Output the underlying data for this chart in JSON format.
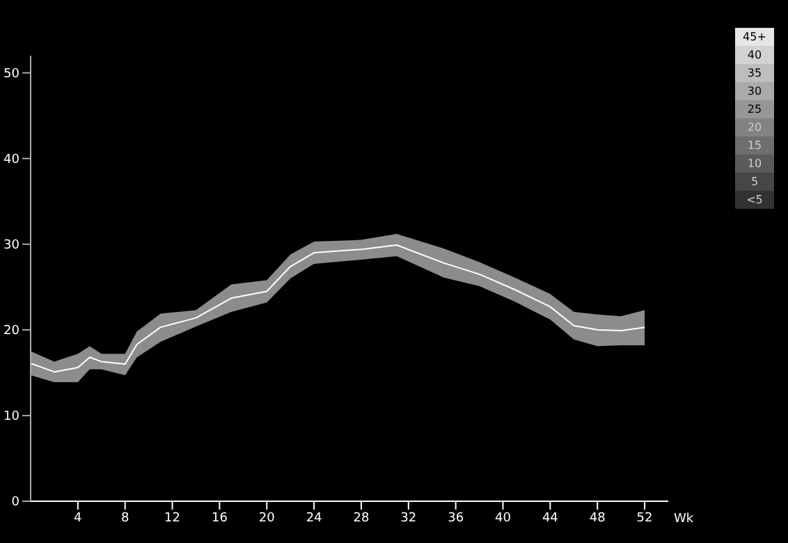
{
  "chart_data": {
    "type": "line",
    "xlabel": "Wk",
    "x": [
      0,
      2,
      4,
      5,
      6,
      8,
      9,
      11,
      14,
      17,
      20,
      22,
      24,
      28,
      31,
      35,
      38,
      41,
      44,
      46,
      48,
      50,
      52
    ],
    "series": [
      {
        "color": "#ffffff",
        "values": [
          16.1,
          15.1,
          15.6,
          16.8,
          16.3,
          16,
          18.3,
          20.3,
          21.4,
          23.7,
          24.5,
          27.4,
          29,
          29.4,
          29.9,
          27.8,
          26.5,
          24.7,
          22.7,
          20.5,
          20,
          19.9,
          20.3
        ],
        "lower": [
          14.7,
          13.9,
          13.9,
          15.4,
          15.4,
          14.7,
          16.8,
          18.6,
          20.4,
          22.1,
          23.2,
          26,
          27.7,
          28.2,
          28.6,
          26.1,
          25.1,
          23.3,
          21.2,
          18.9,
          18.1,
          18.2,
          18.2
        ],
        "upper": [
          17.5,
          16.3,
          17.2,
          18.1,
          17.2,
          17.2,
          19.8,
          21.9,
          22.3,
          25.3,
          25.8,
          28.8,
          30.3,
          30.5,
          31.2,
          29.5,
          27.9,
          26.1,
          24.2,
          22.1,
          21.8,
          21.6,
          22.3
        ]
      }
    ],
    "xlim": [
      0,
      54
    ],
    "xticks": [
      4,
      8,
      12,
      16,
      20,
      24,
      28,
      32,
      36,
      40,
      44,
      48,
      52
    ],
    "ylim": [
      0,
      52
    ],
    "yticks": [
      0,
      10,
      20,
      30,
      40,
      50
    ],
    "annotations": [
      "45+",
      "40",
      "35",
      "30",
      "25",
      "20",
      "15",
      "10",
      "5",
      "<5"
    ]
  }
}
